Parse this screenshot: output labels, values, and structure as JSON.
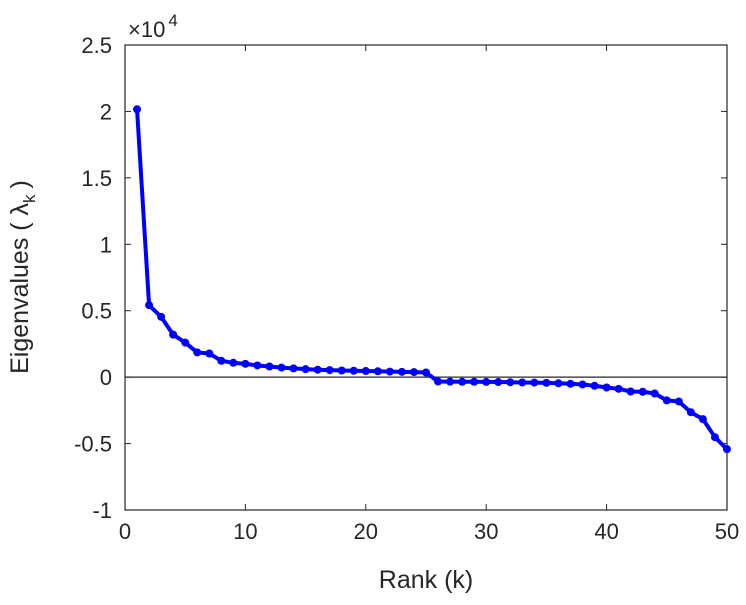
{
  "chart_data": {
    "type": "line",
    "title": "",
    "xlabel": "Rank (k)",
    "ylabel": "Eigenvalues (  λ",
    "ylabel_subscript": "k",
    "ylabel_close": ")",
    "y_multiplier": "×10",
    "y_multiplier_exp": "4",
    "xlim": [
      0,
      50
    ],
    "ylim": [
      -1,
      2.5
    ],
    "xticks": [
      0,
      10,
      20,
      30,
      40,
      50
    ],
    "yticks": [
      -1,
      -0.5,
      0,
      0.5,
      1,
      1.5,
      2,
      2.5
    ],
    "xtick_labels": [
      "0",
      "10",
      "20",
      "30",
      "40",
      "50"
    ],
    "ytick_labels": [
      "-1",
      "-0.5",
      "0",
      "0.5",
      "1",
      "1.5",
      "2",
      "2.5"
    ],
    "grid": false,
    "zero_line": true,
    "series": [
      {
        "name": "eigenvalues",
        "color": "#0000ff",
        "x": [
          1,
          2,
          3,
          4,
          5,
          6,
          7,
          8,
          9,
          10,
          11,
          12,
          13,
          14,
          15,
          16,
          17,
          18,
          19,
          20,
          21,
          22,
          23,
          24,
          25,
          26,
          27,
          28,
          29,
          30,
          31,
          32,
          33,
          34,
          35,
          36,
          37,
          38,
          39,
          40,
          41,
          42,
          43,
          44,
          45,
          46,
          47,
          48,
          49,
          50
        ],
        "values": [
          2.016,
          0.542,
          0.454,
          0.32,
          0.26,
          0.186,
          0.178,
          0.123,
          0.108,
          0.1,
          0.088,
          0.08,
          0.072,
          0.066,
          0.06,
          0.056,
          0.053,
          0.05,
          0.048,
          0.046,
          0.044,
          0.042,
          0.04,
          0.038,
          0.035,
          -0.033,
          -0.034,
          -0.035,
          -0.035,
          -0.036,
          -0.037,
          -0.038,
          -0.04,
          -0.041,
          -0.043,
          -0.046,
          -0.05,
          -0.055,
          -0.065,
          -0.078,
          -0.088,
          -0.108,
          -0.11,
          -0.123,
          -0.175,
          -0.183,
          -0.264,
          -0.316,
          -0.452,
          -0.542
        ]
      }
    ]
  }
}
